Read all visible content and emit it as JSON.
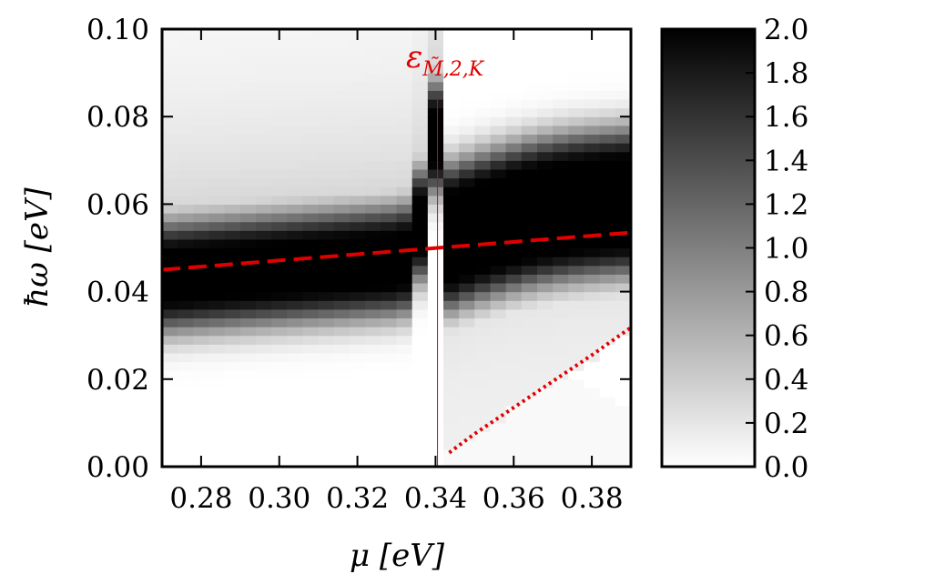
{
  "chart_data": {
    "type": "heatmap",
    "title": "",
    "xlabel": "μ [eV]",
    "ylabel": "ħω [eV]",
    "xlim": [
      0.27,
      0.39
    ],
    "ylim": [
      0.0,
      0.1
    ],
    "x_ticks": [
      "0.28",
      "0.30",
      "0.32",
      "0.34",
      "0.36",
      "0.38"
    ],
    "x_tick_values": [
      0.28,
      0.3,
      0.32,
      0.34,
      0.36,
      0.38
    ],
    "y_ticks": [
      "0.00",
      "0.02",
      "0.04",
      "0.06",
      "0.08",
      "0.10"
    ],
    "y_tick_values": [
      0.0,
      0.02,
      0.04,
      0.06,
      0.08,
      0.1
    ],
    "colorbar": {
      "min": 0.0,
      "max": 2.0,
      "colormap": "gray_r",
      "ticks": [
        "0.0",
        "0.2",
        "0.4",
        "0.6",
        "0.8",
        "1.0",
        "1.2",
        "1.4",
        "1.6",
        "1.8",
        "2.0"
      ],
      "tick_values": [
        0.0,
        0.2,
        0.4,
        0.6,
        0.8,
        1.0,
        1.2,
        1.4,
        1.6,
        1.8,
        2.0
      ]
    },
    "heatmap_grid": {
      "x_step": 0.004,
      "y_step": 0.002,
      "band_center_left": [
        0.27,
        0.0435
      ],
      "band_center_right": [
        0.39,
        0.0545
      ],
      "transition_mu": 0.3405
    },
    "dashed_line": {
      "color": "#e00000",
      "x": [
        0.27,
        0.39
      ],
      "y": [
        0.045,
        0.0535
      ]
    },
    "dotted_curve": {
      "color": "#e00000",
      "x": [
        0.3435,
        0.35,
        0.36,
        0.37,
        0.38,
        0.39
      ],
      "y": [
        0.0032,
        0.0075,
        0.0135,
        0.0195,
        0.0255,
        0.0318
      ]
    },
    "vertical_line": {
      "color": "#e00000",
      "x": 0.3405,
      "y_range": [
        0.0,
        0.0855
      ],
      "label_main": "ε",
      "label_sub": "M̃,2,K"
    }
  }
}
